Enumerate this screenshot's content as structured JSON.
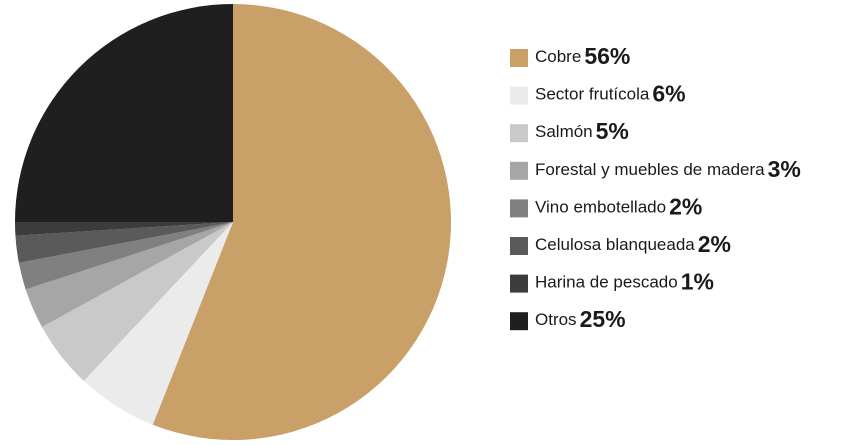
{
  "chart_data": {
    "type": "pie",
    "categories": [
      "Cobre",
      "Sector frutícola",
      "Salmón",
      "Forestal y muebles de madera",
      "Vino embotellado",
      "Celulosa blanqueada",
      "Harina de pescado",
      "Otros"
    ],
    "values": [
      56,
      6,
      5,
      3,
      2,
      2,
      1,
      25
    ],
    "value_labels": [
      "56%",
      "6%",
      "5%",
      "3%",
      "2%",
      "2%",
      "1%",
      "25%"
    ],
    "colors": [
      "#c8a068",
      "#ebebeb",
      "#c9c9c9",
      "#a6a6a6",
      "#808080",
      "#5a5a5a",
      "#3c3c3c",
      "#1f1f1f"
    ]
  }
}
